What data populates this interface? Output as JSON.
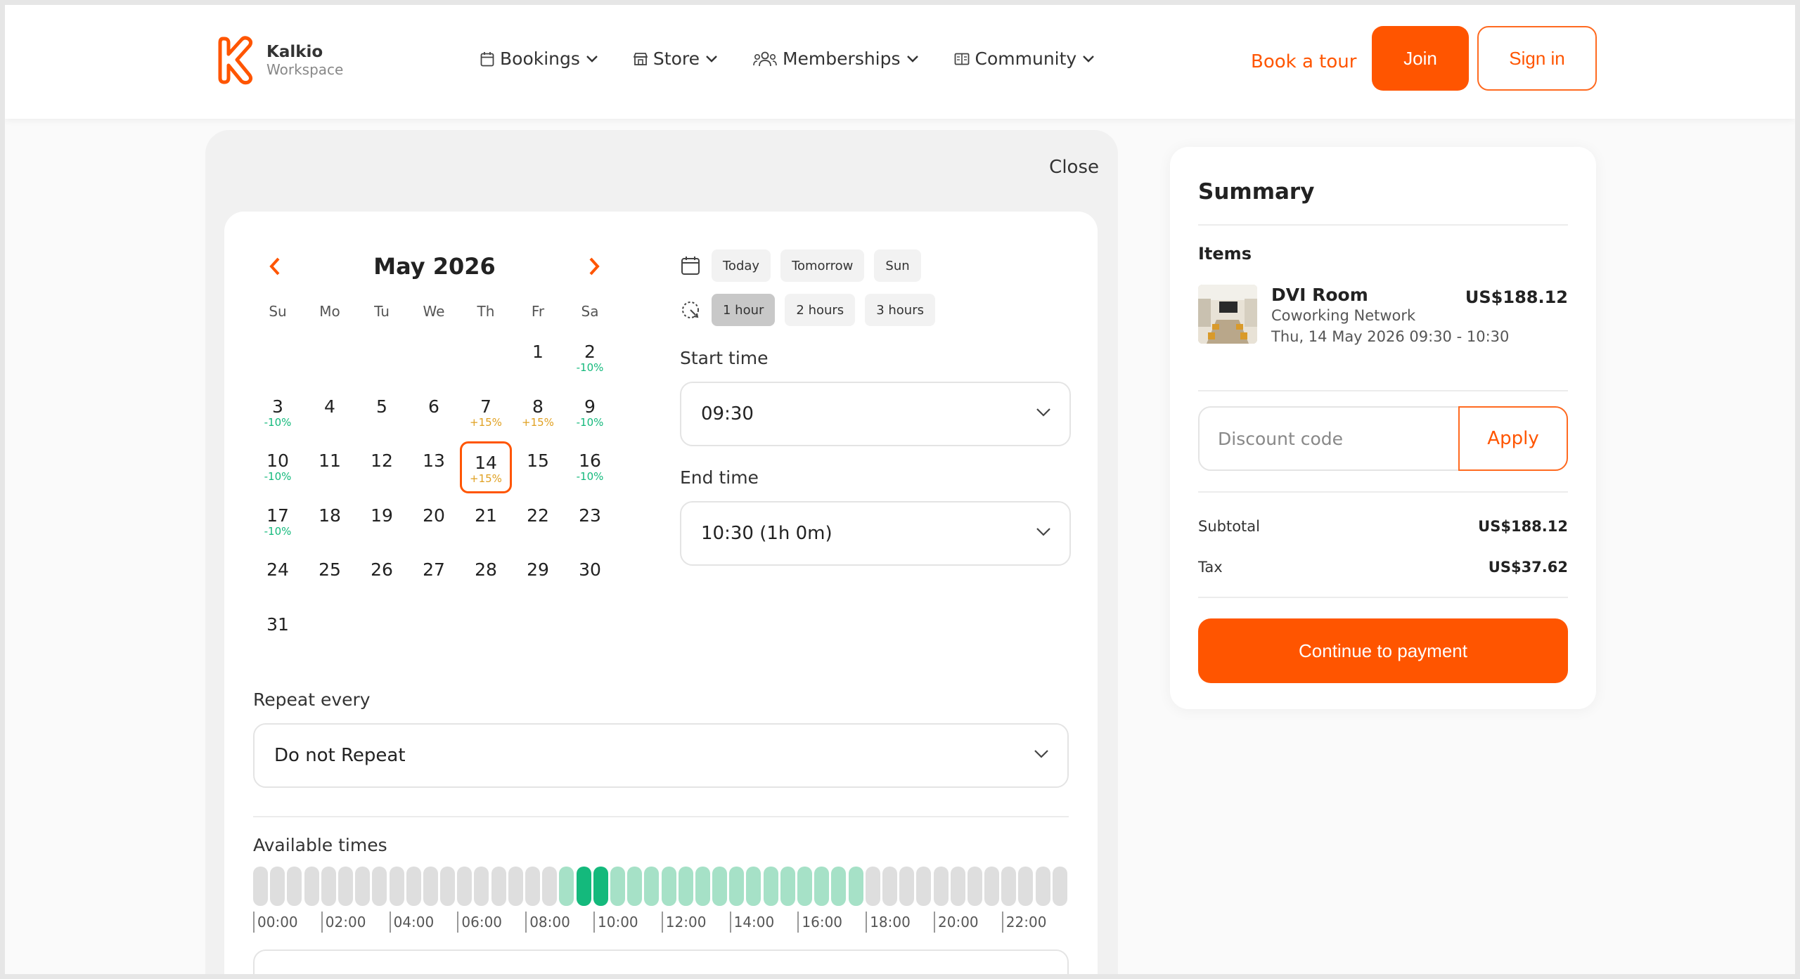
{
  "brand": {
    "name": "Kalkio",
    "subtitle": "Workspace",
    "accent": "#ff5500"
  },
  "nav": [
    {
      "label": "Bookings",
      "icon": "calendar-icon"
    },
    {
      "label": "Store",
      "icon": "store-icon"
    },
    {
      "label": "Memberships",
      "icon": "people-icon"
    },
    {
      "label": "Community",
      "icon": "book-icon"
    }
  ],
  "header": {
    "book_tour": "Book a tour",
    "join": "Join",
    "sign_in": "Sign in"
  },
  "panel": {
    "close": "Close"
  },
  "calendar": {
    "title": "May 2026",
    "weekdays": [
      "Su",
      "Mo",
      "Tu",
      "We",
      "Th",
      "Fr",
      "Sa"
    ],
    "first_weekday_index": 5,
    "days": 31,
    "selected_day": 14,
    "tags": {
      "2": "-10%",
      "3": "-10%",
      "7": "+15%",
      "8": "+15%",
      "9": "-10%",
      "10": "-10%",
      "14": "+15%",
      "16": "-10%",
      "17": "-10%"
    },
    "tag_colors": {
      "discount": "#14b97c",
      "surcharge": "#e0a020"
    }
  },
  "quick_dates": [
    "Today",
    "Tomorrow",
    "Sun"
  ],
  "durations": [
    {
      "label": "1 hour",
      "active": true
    },
    {
      "label": "2 hours",
      "active": false
    },
    {
      "label": "3 hours",
      "active": false
    }
  ],
  "start_time": {
    "label": "Start time",
    "value": "09:30"
  },
  "end_time": {
    "label": "End time",
    "value": "10:30 (1h 0m)"
  },
  "repeat": {
    "label": "Repeat every",
    "value": "Do not Repeat"
  },
  "available": {
    "label": "Available times",
    "slot_count": 48,
    "available_from": 18,
    "available_to": 35,
    "selected": [
      19,
      20
    ],
    "ticks": [
      "00:00",
      "02:00",
      "04:00",
      "06:00",
      "08:00",
      "10:00",
      "12:00",
      "14:00",
      "16:00",
      "18:00",
      "20:00",
      "22:00"
    ]
  },
  "summary": {
    "title": "Summary",
    "items_label": "Items",
    "item": {
      "name": "DVI Room",
      "org": "Coworking Network",
      "when": "Thu, 14 May 2026 09:30 - 10:30",
      "price": "US$188.12"
    },
    "discount_placeholder": "Discount code",
    "apply": "Apply",
    "subtotal_label": "Subtotal",
    "subtotal": "US$188.12",
    "tax_label": "Tax",
    "tax": "US$37.62",
    "pay": "Continue to payment"
  }
}
